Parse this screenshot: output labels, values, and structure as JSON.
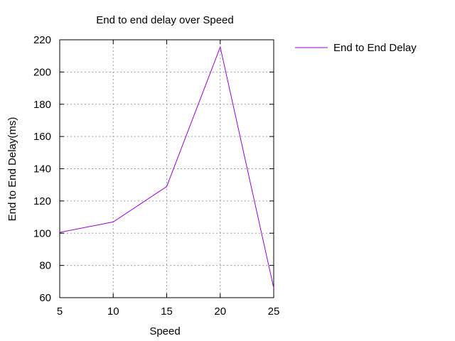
{
  "chart_data": {
    "type": "line",
    "title": "End to end delay over Speed",
    "xlabel": "Speed",
    "ylabel": "End to End Delay(ms)",
    "xlim": [
      5,
      25
    ],
    "ylim": [
      60,
      220
    ],
    "xticks": [
      5,
      10,
      15,
      20,
      25
    ],
    "yticks": [
      60,
      80,
      100,
      120,
      140,
      160,
      180,
      200,
      220
    ],
    "grid": true,
    "legend_position": "top-right, outside plot",
    "series": [
      {
        "name": "End to End Delay",
        "color": "#9400d3",
        "x": [
          5,
          10,
          15,
          20,
          25
        ],
        "y": [
          100.5,
          107,
          129,
          215.5,
          66
        ]
      }
    ]
  }
}
